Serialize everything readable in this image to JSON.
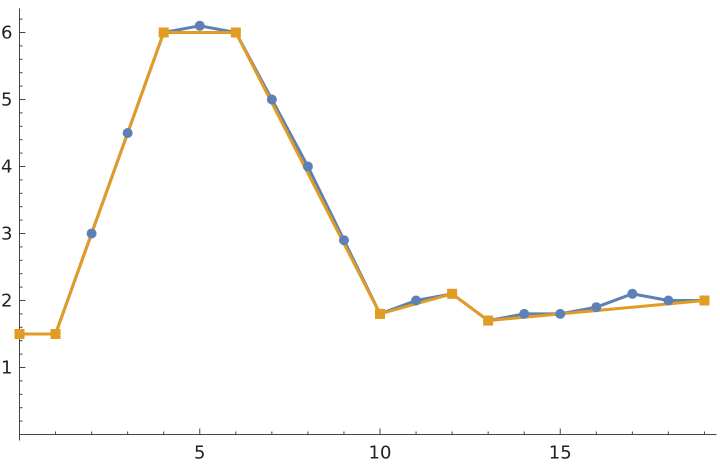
{
  "chart_data": {
    "type": "line",
    "title": "",
    "xlabel": "",
    "ylabel": "",
    "xlim": [
      0,
      19
    ],
    "ylim": [
      0,
      6.3
    ],
    "x_major_ticks": [
      5,
      10,
      15
    ],
    "x_minor_step": 1,
    "y_major_ticks": [
      1,
      2,
      3,
      4,
      5,
      6
    ],
    "y_minor_step": 0.2,
    "grid": false,
    "legend": "none",
    "series": [
      {
        "marker": "circle",
        "color": "#5e81b5",
        "points": [
          [
            0,
            1.5
          ],
          [
            1,
            1.5
          ],
          [
            2,
            3.0
          ],
          [
            3,
            4.5
          ],
          [
            4,
            6.0
          ],
          [
            5,
            6.1
          ],
          [
            6,
            6.0
          ],
          [
            7,
            5.0
          ],
          [
            8,
            4.0
          ],
          [
            9,
            2.9
          ],
          [
            10,
            1.8
          ],
          [
            11,
            2.0
          ],
          [
            12,
            2.1
          ],
          [
            13,
            1.7
          ],
          [
            14,
            1.8
          ],
          [
            15,
            1.8
          ],
          [
            16,
            1.9
          ],
          [
            17,
            2.1
          ],
          [
            18,
            2.0
          ],
          [
            19,
            2.0
          ]
        ]
      },
      {
        "marker": "square",
        "color": "#e19c24",
        "points": [
          [
            0,
            1.5
          ],
          [
            1,
            1.5
          ],
          [
            4,
            6.0
          ],
          [
            6,
            6.0
          ],
          [
            10,
            1.8
          ],
          [
            12,
            2.1
          ],
          [
            13,
            1.7
          ],
          [
            19,
            2.0
          ]
        ]
      }
    ]
  }
}
